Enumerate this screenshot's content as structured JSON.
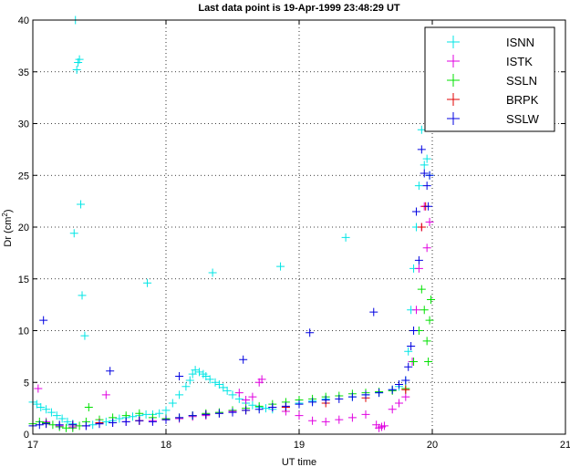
{
  "chart_data": {
    "type": "scatter",
    "title": "Last data point is 19-Apr-1999 23:48:29 UT",
    "xlabel": "UT time",
    "ylabel": "Dr (cm",
    "ylabel_sup": "2",
    "ylabel_close": ")",
    "xlim": [
      17,
      21
    ],
    "ylim": [
      0,
      40
    ],
    "xticks": [
      "17",
      "18",
      "19",
      "20",
      "21"
    ],
    "yticks": [
      "0",
      "5",
      "10",
      "15",
      "20",
      "25",
      "30",
      "35",
      "40"
    ],
    "grid": true,
    "legend_position": "top-right",
    "marker": "+",
    "series": [
      {
        "name": "ISNN",
        "color": "#00e5e5",
        "points": [
          [
            17.0,
            3.1
          ],
          [
            17.03,
            2.9
          ],
          [
            17.06,
            2.6
          ],
          [
            17.1,
            2.4
          ],
          [
            17.14,
            2.1
          ],
          [
            17.18,
            1.8
          ],
          [
            17.22,
            1.5
          ],
          [
            17.26,
            1.2
          ],
          [
            17.3,
            1.0
          ],
          [
            17.31,
            19.4
          ],
          [
            17.32,
            40.0
          ],
          [
            17.33,
            35.2
          ],
          [
            17.34,
            35.9
          ],
          [
            17.35,
            36.2
          ],
          [
            17.36,
            22.2
          ],
          [
            17.37,
            13.4
          ],
          [
            17.39,
            9.5
          ],
          [
            17.45,
            0.9
          ],
          [
            17.5,
            1.0
          ],
          [
            17.55,
            1.2
          ],
          [
            17.6,
            1.3
          ],
          [
            17.65,
            1.5
          ],
          [
            17.7,
            1.6
          ],
          [
            17.75,
            1.7
          ],
          [
            17.8,
            1.8
          ],
          [
            17.85,
            1.9
          ],
          [
            17.86,
            14.6
          ],
          [
            17.9,
            1.9
          ],
          [
            17.95,
            2.0
          ],
          [
            18.0,
            2.3
          ],
          [
            18.05,
            3.0
          ],
          [
            18.1,
            3.8
          ],
          [
            18.15,
            4.6
          ],
          [
            18.18,
            5.2
          ],
          [
            18.2,
            5.8
          ],
          [
            18.22,
            6.2
          ],
          [
            18.25,
            6.0
          ],
          [
            18.28,
            5.8
          ],
          [
            18.3,
            5.6
          ],
          [
            18.33,
            5.3
          ],
          [
            18.35,
            15.6
          ],
          [
            18.37,
            5.0
          ],
          [
            18.4,
            4.8
          ],
          [
            18.43,
            4.5
          ],
          [
            18.46,
            4.2
          ],
          [
            18.5,
            3.8
          ],
          [
            18.55,
            3.4
          ],
          [
            18.6,
            3.0
          ],
          [
            18.65,
            2.8
          ],
          [
            18.7,
            2.6
          ],
          [
            18.75,
            2.5
          ],
          [
            18.8,
            2.4
          ],
          [
            18.86,
            16.2
          ],
          [
            18.9,
            2.6
          ],
          [
            19.0,
            3.0
          ],
          [
            19.1,
            3.2
          ],
          [
            19.2,
            3.4
          ],
          [
            19.35,
            19.0
          ],
          [
            19.4,
            3.6
          ],
          [
            19.5,
            3.8
          ],
          [
            19.6,
            4.0
          ],
          [
            19.7,
            4.3
          ],
          [
            19.75,
            4.6
          ],
          [
            19.8,
            5.2
          ],
          [
            19.82,
            8.0
          ],
          [
            19.84,
            12.0
          ],
          [
            19.86,
            16.0
          ],
          [
            19.88,
            20.0
          ],
          [
            19.9,
            24.0
          ],
          [
            19.92,
            29.4
          ],
          [
            19.94,
            26.0
          ],
          [
            19.96,
            26.6
          ],
          [
            19.98,
            25.0
          ]
        ]
      },
      {
        "name": "ISTK",
        "color": "#e000e0",
        "points": [
          [
            17.04,
            4.4
          ],
          [
            17.1,
            1.2
          ],
          [
            17.2,
            0.8
          ],
          [
            17.3,
            0.7
          ],
          [
            17.4,
            0.8
          ],
          [
            17.5,
            1.0
          ],
          [
            17.55,
            3.8
          ],
          [
            17.6,
            1.1
          ],
          [
            17.7,
            1.2
          ],
          [
            17.8,
            1.3
          ],
          [
            17.9,
            1.3
          ],
          [
            18.0,
            1.4
          ],
          [
            18.1,
            1.5
          ],
          [
            18.2,
            1.7
          ],
          [
            18.3,
            1.8
          ],
          [
            18.4,
            2.0
          ],
          [
            18.5,
            2.2
          ],
          [
            18.55,
            4.0
          ],
          [
            18.6,
            3.3
          ],
          [
            18.65,
            3.6
          ],
          [
            18.7,
            5.0
          ],
          [
            18.72,
            5.3
          ],
          [
            18.8,
            2.6
          ],
          [
            18.9,
            2.2
          ],
          [
            19.0,
            1.8
          ],
          [
            19.1,
            1.3
          ],
          [
            19.2,
            1.2
          ],
          [
            19.3,
            1.4
          ],
          [
            19.4,
            1.6
          ],
          [
            19.5,
            1.9
          ],
          [
            19.58,
            0.9
          ],
          [
            19.6,
            0.6
          ],
          [
            19.62,
            0.7
          ],
          [
            19.64,
            0.8
          ],
          [
            19.7,
            2.4
          ],
          [
            19.75,
            3.0
          ],
          [
            19.8,
            3.6
          ],
          [
            19.85,
            7.0
          ],
          [
            19.88,
            12.0
          ],
          [
            19.9,
            16.0
          ],
          [
            19.92,
            20.0
          ],
          [
            19.94,
            22.0
          ],
          [
            19.96,
            18.0
          ],
          [
            19.98,
            20.5
          ]
        ]
      },
      {
        "name": "SSLN",
        "color": "#00e000",
        "points": [
          [
            17.0,
            1.0
          ],
          [
            17.05,
            1.2
          ],
          [
            17.1,
            1.1
          ],
          [
            17.15,
            0.9
          ],
          [
            17.2,
            0.7
          ],
          [
            17.25,
            0.6
          ],
          [
            17.3,
            0.6
          ],
          [
            17.35,
            0.8
          ],
          [
            17.4,
            1.2
          ],
          [
            17.42,
            2.6
          ],
          [
            17.5,
            1.4
          ],
          [
            17.6,
            1.6
          ],
          [
            17.7,
            1.8
          ],
          [
            17.8,
            2.0
          ],
          [
            17.9,
            1.6
          ],
          [
            18.0,
            1.5
          ],
          [
            18.1,
            1.6
          ],
          [
            18.2,
            1.8
          ],
          [
            18.3,
            2.0
          ],
          [
            18.4,
            2.1
          ],
          [
            18.5,
            2.3
          ],
          [
            18.6,
            2.5
          ],
          [
            18.7,
            2.7
          ],
          [
            18.8,
            2.9
          ],
          [
            18.9,
            3.1
          ],
          [
            19.0,
            3.3
          ],
          [
            19.1,
            3.4
          ],
          [
            19.2,
            3.6
          ],
          [
            19.3,
            3.7
          ],
          [
            19.4,
            3.9
          ],
          [
            19.5,
            4.0
          ],
          [
            19.6,
            4.1
          ],
          [
            19.7,
            4.2
          ],
          [
            19.8,
            4.4
          ],
          [
            19.86,
            7.0
          ],
          [
            19.9,
            10.0
          ],
          [
            19.92,
            14.0
          ],
          [
            19.94,
            12.0
          ],
          [
            19.96,
            9.0
          ],
          [
            19.97,
            7.0
          ],
          [
            19.98,
            11.0
          ],
          [
            19.99,
            13.0
          ]
        ]
      },
      {
        "name": "BRPK",
        "color": "#e00000",
        "points": [
          [
            17.1,
            1.0
          ],
          [
            17.3,
            0.9
          ],
          [
            17.5,
            1.1
          ],
          [
            17.8,
            1.3
          ],
          [
            18.0,
            1.4
          ],
          [
            18.3,
            1.9
          ],
          [
            18.6,
            2.3
          ],
          [
            18.9,
            2.6
          ],
          [
            19.2,
            3.0
          ],
          [
            19.5,
            3.5
          ],
          [
            19.8,
            4.3
          ],
          [
            19.92,
            20.0
          ],
          [
            19.95,
            22.0
          ]
        ]
      },
      {
        "name": "SSLW",
        "color": "#0000e0",
        "points": [
          [
            17.0,
            0.8
          ],
          [
            17.05,
            0.9
          ],
          [
            17.08,
            11.0
          ],
          [
            17.1,
            1.0
          ],
          [
            17.2,
            0.9
          ],
          [
            17.3,
            0.9
          ],
          [
            17.4,
            0.8
          ],
          [
            17.5,
            1.0
          ],
          [
            17.58,
            6.1
          ],
          [
            17.6,
            1.1
          ],
          [
            17.7,
            1.2
          ],
          [
            17.8,
            1.3
          ],
          [
            17.9,
            1.2
          ],
          [
            18.0,
            1.4
          ],
          [
            18.1,
            1.6
          ],
          [
            18.1,
            5.6
          ],
          [
            18.2,
            1.8
          ],
          [
            18.3,
            1.9
          ],
          [
            18.4,
            2.0
          ],
          [
            18.5,
            2.1
          ],
          [
            18.58,
            7.2
          ],
          [
            18.6,
            2.3
          ],
          [
            18.7,
            2.4
          ],
          [
            18.8,
            2.6
          ],
          [
            18.9,
            2.7
          ],
          [
            19.0,
            2.9
          ],
          [
            19.08,
            9.8
          ],
          [
            19.1,
            3.1
          ],
          [
            19.2,
            3.3
          ],
          [
            19.3,
            3.4
          ],
          [
            19.4,
            3.6
          ],
          [
            19.5,
            3.8
          ],
          [
            19.56,
            11.8
          ],
          [
            19.6,
            4.0
          ],
          [
            19.7,
            4.3
          ],
          [
            19.75,
            4.8
          ],
          [
            19.8,
            5.2
          ],
          [
            19.82,
            6.5
          ],
          [
            19.84,
            8.5
          ],
          [
            19.86,
            10.0
          ],
          [
            19.88,
            21.5
          ],
          [
            19.9,
            16.8
          ],
          [
            19.92,
            27.5
          ],
          [
            19.94,
            25.2
          ],
          [
            19.96,
            24.0
          ],
          [
            19.97,
            22.0
          ],
          [
            19.98,
            25.0
          ]
        ]
      }
    ]
  }
}
